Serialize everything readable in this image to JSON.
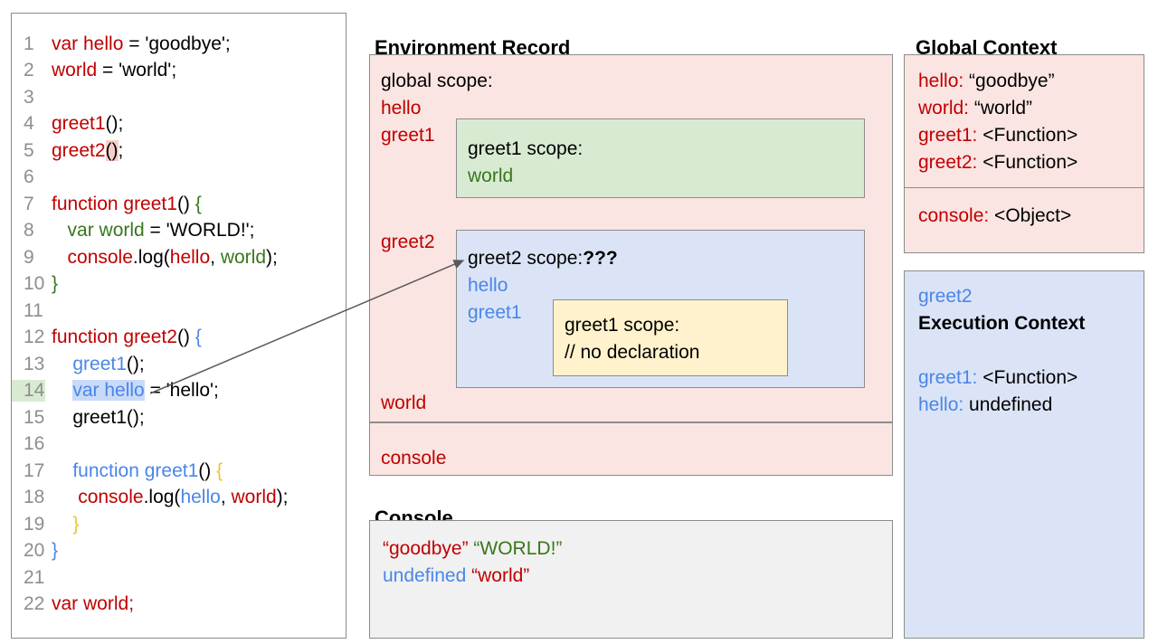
{
  "palette": {
    "red": "#c00000",
    "blue": "#4a86e8",
    "green": "#38761d",
    "yellow": "#f1c232",
    "gray_text": "#8e8e8e",
    "pink_bg": "#fbe5e2",
    "green_bg": "#d9ead3",
    "blue_bg": "#dbe4f7",
    "yellow_bg": "#fff2cc",
    "console_bg": "#f1f1f1",
    "border": "#8c8c8c",
    "hl_pink": "#f6cfca",
    "hl_blue": "#c9daf8",
    "hl_green": "#d9ead3",
    "arrow": "#595959"
  },
  "code_panel": {
    "lines": [
      {
        "n": "1",
        "seg": [
          {
            "t": "var hello",
            "c": "red"
          },
          {
            "t": " = 'goodbye';",
            "c": "k"
          }
        ]
      },
      {
        "n": "2",
        "seg": [
          {
            "t": "world",
            "c": "red"
          },
          {
            "t": " = 'world';",
            "c": "k"
          }
        ]
      },
      {
        "n": "3",
        "seg": []
      },
      {
        "n": "4",
        "seg": [
          {
            "t": "greet1",
            "c": "red"
          },
          {
            "t": "();",
            "c": "k"
          }
        ]
      },
      {
        "n": "5",
        "seg": [
          {
            "t": "greet2",
            "c": "red"
          },
          {
            "t": "()",
            "c": "k",
            "hl": "pink"
          },
          {
            "t": ";",
            "c": "k"
          }
        ]
      },
      {
        "n": "6",
        "seg": []
      },
      {
        "n": "7",
        "seg": [
          {
            "t": "function greet1",
            "c": "red"
          },
          {
            "t": "() ",
            "c": "k"
          },
          {
            "t": "{",
            "c": "green"
          }
        ]
      },
      {
        "n": "8",
        "seg": [
          {
            "t": "   ",
            "c": "k"
          },
          {
            "t": "var world",
            "c": "green"
          },
          {
            "t": " = 'WORLD!';",
            "c": "k"
          }
        ]
      },
      {
        "n": "9",
        "seg": [
          {
            "t": "   ",
            "c": "k"
          },
          {
            "t": "console",
            "c": "red"
          },
          {
            "t": ".log(",
            "c": "k"
          },
          {
            "t": "hello",
            "c": "red"
          },
          {
            "t": ", ",
            "c": "k"
          },
          {
            "t": "world",
            "c": "green"
          },
          {
            "t": ");",
            "c": "k"
          }
        ]
      },
      {
        "n": "10",
        "seg": [
          {
            "t": "}",
            "c": "green"
          }
        ]
      },
      {
        "n": "11",
        "seg": []
      },
      {
        "n": "12",
        "seg": [
          {
            "t": "function greet2",
            "c": "red"
          },
          {
            "t": "() ",
            "c": "k"
          },
          {
            "t": "{",
            "c": "blue"
          }
        ]
      },
      {
        "n": "13",
        "seg": [
          {
            "t": "    ",
            "c": "k"
          },
          {
            "t": "greet1",
            "c": "blue"
          },
          {
            "t": "();",
            "c": "k"
          }
        ]
      },
      {
        "n": "14",
        "nhl": "green",
        "seg": [
          {
            "t": "    ",
            "c": "k"
          },
          {
            "t": "var hello",
            "c": "blue",
            "hl": "blue"
          },
          {
            "t": " = 'hello';",
            "c": "k"
          }
        ]
      },
      {
        "n": "15",
        "seg": [
          {
            "t": "    ",
            "c": "k"
          },
          {
            "t": "greet1();",
            "c": "k"
          }
        ]
      },
      {
        "n": "16",
        "seg": []
      },
      {
        "n": "17",
        "seg": [
          {
            "t": "    ",
            "c": "k"
          },
          {
            "t": "function greet1",
            "c": "blue"
          },
          {
            "t": "() ",
            "c": "k"
          },
          {
            "t": "{",
            "c": "yellow"
          }
        ]
      },
      {
        "n": "18",
        "seg": [
          {
            "t": "     ",
            "c": "k"
          },
          {
            "t": "console",
            "c": "red"
          },
          {
            "t": ".log(",
            "c": "k"
          },
          {
            "t": "hello",
            "c": "blue"
          },
          {
            "t": ", ",
            "c": "k"
          },
          {
            "t": "world",
            "c": "red"
          },
          {
            "t": ");",
            "c": "k"
          }
        ]
      },
      {
        "n": "19",
        "seg": [
          {
            "t": "    ",
            "c": "k"
          },
          {
            "t": "}",
            "c": "yellow"
          }
        ]
      },
      {
        "n": "20",
        "seg": [
          {
            "t": "}",
            "c": "blue"
          }
        ]
      },
      {
        "n": "21",
        "seg": []
      },
      {
        "n": "22",
        "seg": [
          {
            "t": "var world;",
            "c": "red"
          }
        ]
      }
    ]
  },
  "environment_record": {
    "title": "Environment Record",
    "global_scope_label": "global scope:",
    "hello_label": "hello",
    "greet1_label": "greet1",
    "greet2_label": "greet2",
    "world_label": "world",
    "console_label": "console",
    "greet1_scope": {
      "title": "greet1 scope:",
      "world_label": "world"
    },
    "greet2_scope": {
      "title": "greet2 scope:",
      "unknown": "???",
      "hello_label": "hello",
      "greet1_label": "greet1",
      "inner_greet1_scope": {
        "title": "greet1 scope:",
        "comment": "// no declaration"
      }
    }
  },
  "console_panel": {
    "title": "Console",
    "lines": [
      [
        {
          "t": "“goodbye”",
          "c": "red"
        },
        {
          "t": " ",
          "c": "k"
        },
        {
          "t": "“WORLD!”",
          "c": "green"
        }
      ],
      [
        {
          "t": "undefined",
          "c": "blue"
        },
        {
          "t": " ",
          "c": "k"
        },
        {
          "t": "“world”",
          "c": "red"
        }
      ]
    ]
  },
  "global_context": {
    "title": "Global Context",
    "rows": [
      [
        {
          "t": "hello:",
          "c": "red"
        },
        {
          "t": " “goodbye”",
          "c": "k"
        }
      ],
      [
        {
          "t": "world:",
          "c": "red"
        },
        {
          "t": " “world”",
          "c": "k"
        }
      ],
      [
        {
          "t": "greet1:",
          "c": "red"
        },
        {
          "t": " <Function>",
          "c": "k"
        }
      ],
      [
        {
          "t": "greet2:",
          "c": "red"
        },
        {
          "t": " <Function>",
          "c": "k"
        }
      ]
    ],
    "console_row": [
      {
        "t": "console:",
        "c": "red"
      },
      {
        "t": " <Object>",
        "c": "k"
      }
    ]
  },
  "execution_context": {
    "function_name": "greet2",
    "title": "Execution Context",
    "rows": [
      [
        {
          "t": "greet1:",
          "c": "blue"
        },
        {
          "t": " <Function>",
          "c": "k"
        }
      ],
      [
        {
          "t": "hello:",
          "c": "blue"
        },
        {
          "t": " undefined",
          "c": "k"
        }
      ]
    ]
  }
}
